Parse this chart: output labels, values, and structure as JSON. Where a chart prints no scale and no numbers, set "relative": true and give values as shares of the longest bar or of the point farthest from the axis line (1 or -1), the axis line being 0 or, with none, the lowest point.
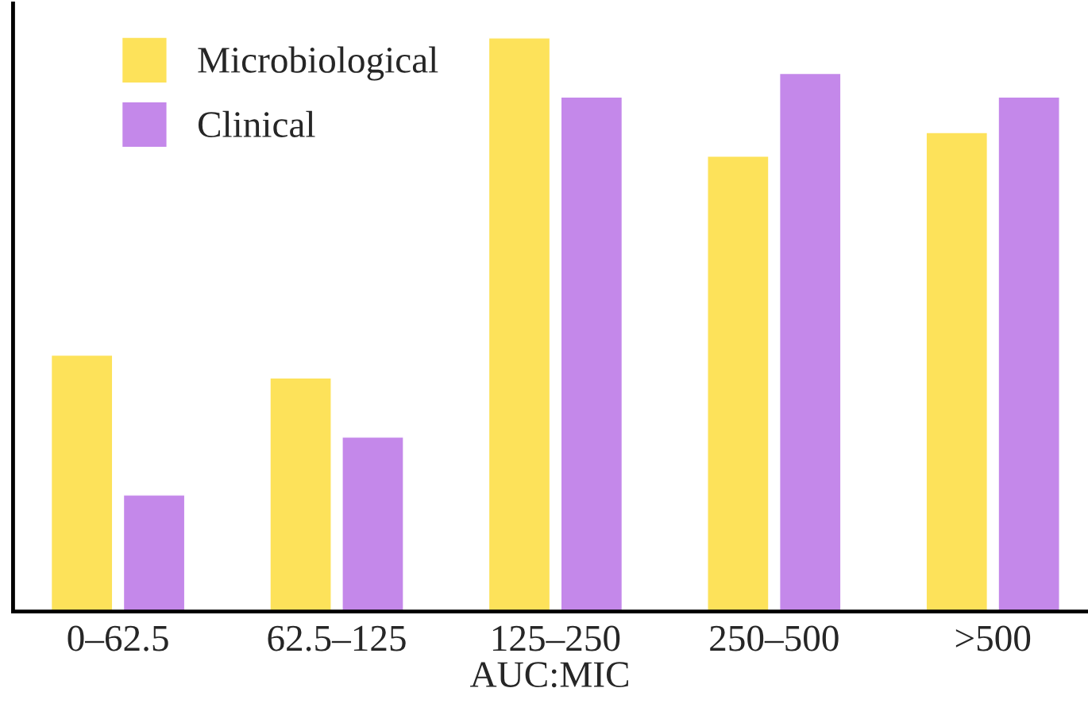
{
  "chart_data": {
    "type": "bar",
    "relative": true,
    "xlabel": "AUC:MIC",
    "categories": [
      "0–62.5",
      "62.5–125",
      "125–250",
      "250–500",
      ">500"
    ],
    "series": [
      {
        "name": "Microbiological",
        "color": "#fde25a",
        "values": [
          0.447,
          0.407,
          1,
          0.794,
          0.835
        ]
      },
      {
        "name": "Clinical",
        "color": "#c488ea",
        "values": [
          0.203,
          0.304,
          0.897,
          0.938,
          0.897
        ]
      }
    ],
    "legend": "top left",
    "grid": false
  }
}
